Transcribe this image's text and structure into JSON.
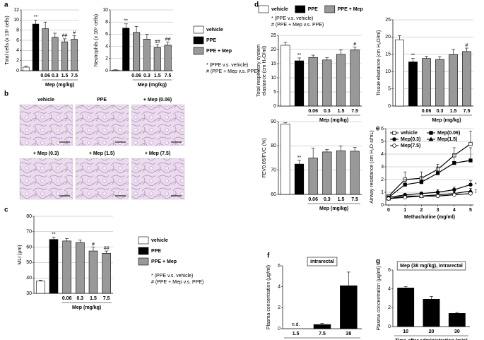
{
  "panel_labels": [
    "a",
    "b",
    "c",
    "d",
    "e",
    "f",
    "g"
  ],
  "panel_b": {
    "labels": [
      "vehicle",
      "PPE",
      "+ Mep (0.06)",
      "+ Mep (0.3)",
      "+ Mep (1.5)",
      "+ Mep (7.5)"
    ]
  },
  "chart_data": [
    {
      "type": "bar",
      "ylabel": [
        "Total cells (x 10⁵ cells)"
      ],
      "categories": [
        null,
        null,
        "0.06",
        "0.3",
        "1.5",
        "7.5"
      ],
      "xlabel": "Mep (mg/kg)",
      "values": [
        0.7,
        9.2,
        8.3,
        6.6,
        5.7,
        6.2
      ],
      "errors": [
        0.2,
        0.8,
        1.3,
        0.8,
        0.6,
        0.7
      ],
      "marks": [
        null,
        "**",
        null,
        null,
        "##",
        "#"
      ],
      "colors": [
        "#ffffff",
        "#000000",
        "#999999",
        "#999999",
        "#999999",
        "#999999"
      ],
      "ylim": [
        0,
        12
      ],
      "yticks": [
        0,
        2,
        4,
        6,
        8,
        10,
        12
      ],
      "grid": true
    },
    {
      "type": "bar",
      "ylabel": [
        "Neutrophils (x 10⁵ cells)"
      ],
      "categories": [
        null,
        null,
        "0.06",
        "0.3",
        "1.5",
        "7.5"
      ],
      "xlabel": "Mep (mg/kg)",
      "values": [
        0.1,
        7.0,
        6.3,
        5.2,
        3.8,
        4.2
      ],
      "errors": [
        0.05,
        0.7,
        1.0,
        0.8,
        0.5,
        0.5
      ],
      "marks": [
        null,
        "**",
        null,
        null,
        "##",
        "##"
      ],
      "colors": [
        "#ffffff",
        "#000000",
        "#999999",
        "#999999",
        "#999999",
        "#999999"
      ],
      "ylim": [
        0,
        10
      ],
      "yticks": [
        0,
        2,
        4,
        6,
        8,
        10
      ],
      "grid": true,
      "legend": {
        "items": [
          {
            "name": "vehicle",
            "color": "#ffffff"
          },
          {
            "name": "PPE",
            "color": "#000000"
          },
          {
            "name": "PPE + Mep",
            "color": "#999999"
          }
        ],
        "notes": [
          "* (PPE v.s. vehicle)",
          "# (PPE + Mep v.s. PPE)"
        ]
      }
    },
    {
      "type": "bar",
      "ylabel": [
        "MLI (μm)"
      ],
      "categories": [
        null,
        null,
        "0.06",
        "0.3",
        "1.5",
        "7.5"
      ],
      "xlabel": "Mep (mg/kg)",
      "values": [
        38,
        65,
        64,
        63,
        57.5,
        56
      ],
      "errors": [
        0.5,
        1.5,
        1.5,
        1.5,
        2.5,
        1.5
      ],
      "marks": [
        null,
        "**",
        null,
        null,
        "#",
        "##"
      ],
      "colors": [
        "#ffffff",
        "#000000",
        "#999999",
        "#999999",
        "#999999",
        "#999999"
      ],
      "ylim": [
        30,
        80
      ],
      "yticks": [
        30,
        40,
        50,
        60,
        70,
        80
      ],
      "grid": true,
      "legend": {
        "items": [
          {
            "name": "vehicle",
            "color": "#ffffff"
          },
          {
            "name": "PPE",
            "color": "#000000"
          },
          {
            "name": "PPE + Mep",
            "color": "#999999"
          }
        ],
        "notes": [
          "* (PPE v.s. vehicle)",
          "# (PPE + Mep v.s. PPE)"
        ]
      }
    },
    {
      "type": "bar",
      "ylabel": [
        "Total respiratory system",
        "elastance (cm H₂O/ml)"
      ],
      "categories": [
        null,
        null,
        "0.06",
        "0.3",
        "1.5",
        "7.5"
      ],
      "xlabel": "Mep (mg/kg)",
      "values": [
        21.5,
        16,
        17.2,
        16.3,
        18.3,
        19.8
      ],
      "errors": [
        1.0,
        1.0,
        0.8,
        0.8,
        1.5,
        1.0
      ],
      "marks": [
        null,
        "**",
        null,
        null,
        null,
        "#"
      ],
      "colors": [
        "#ffffff",
        "#000000",
        "#999999",
        "#999999",
        "#999999",
        "#999999"
      ],
      "ylim": [
        0,
        25
      ],
      "yticks": [
        0,
        5,
        10,
        15,
        20,
        25
      ],
      "grid": true,
      "legend": {
        "items": [
          {
            "name": "vehicle",
            "color": "#ffffff"
          },
          {
            "name": "PPE",
            "color": "#000000"
          },
          {
            "name": "PPE + Mep",
            "color": "#999999"
          }
        ],
        "notes": [
          "* (PPE v.s. vehicle)",
          "# (PPE + Mep v.s. PPE)"
        ]
      }
    },
    {
      "type": "bar",
      "ylabel": [
        "Tissue elastance (cm H₂O/ml)"
      ],
      "categories": [
        null,
        null,
        "0.06",
        "0.3",
        "1.5",
        "7.5"
      ],
      "xlabel": "Mep (mg/kg)",
      "values": [
        19.2,
        12.8,
        13.8,
        13.5,
        14.9,
        15.8
      ],
      "errors": [
        1.2,
        1.0,
        0.6,
        0.8,
        1.5,
        1.0
      ],
      "marks": [
        null,
        "**",
        null,
        null,
        null,
        "#"
      ],
      "colors": [
        "#ffffff",
        "#000000",
        "#999999",
        "#999999",
        "#999999",
        "#999999"
      ],
      "ylim": [
        0,
        25
      ],
      "yticks": [
        0,
        5,
        10,
        15,
        20,
        25
      ],
      "grid": true
    },
    {
      "type": "bar",
      "ylabel": [
        "FEV0.05/FVC (%)"
      ],
      "categories": [
        null,
        null,
        "0.06",
        "0.3",
        "1.5",
        "7.5"
      ],
      "xlabel": "Mep (mg/kg)",
      "values": [
        89,
        72.5,
        75,
        77.5,
        78,
        77.8
      ],
      "errors": [
        0.5,
        1.5,
        4,
        1,
        2,
        1.5
      ],
      "marks": [
        null,
        "**",
        null,
        null,
        null,
        null
      ],
      "colors": [
        "#ffffff",
        "#000000",
        "#999999",
        "#999999",
        "#999999",
        "#999999"
      ],
      "ylim": [
        60,
        90
      ],
      "yticks": [
        60,
        70,
        80,
        90
      ],
      "grid": true
    },
    {
      "type": "line",
      "ylabel": [
        "Airway resistance (cm H₂O·s/mL)"
      ],
      "xlabel": "Methacholine (mg/ml)",
      "x": [
        0,
        1,
        2,
        3,
        4,
        5
      ],
      "xlim": [
        0,
        5
      ],
      "xticks": [
        0,
        1,
        2,
        3,
        4,
        5
      ],
      "ylim": [
        0,
        6
      ],
      "yticks": [
        0,
        1,
        2,
        3,
        4,
        5,
        6
      ],
      "grid": true,
      "series": [
        {
          "name": "vehicle",
          "color": "#000000",
          "marker": "square",
          "filled": false,
          "values": [
            0.7,
            2.0,
            2.1,
            2.8,
            3.9,
            4.8
          ],
          "errors": [
            0.1,
            0.6,
            0.5,
            0.4,
            0.6,
            1.0
          ]
        },
        {
          "name": "Mep(0.06)",
          "color": "#000000",
          "marker": "square",
          "filled": true,
          "values": [
            0.6,
            1.6,
            1.8,
            2.5,
            3.3,
            3.5
          ],
          "errors": [
            0.1,
            0.4,
            0.4,
            0.5,
            0.7,
            1.0
          ]
        },
        {
          "name": "Mep(0.3)",
          "color": "#000000",
          "marker": "circle",
          "filled": true,
          "values": [
            0.6,
            0.8,
            0.9,
            1.0,
            1.2,
            1.6
          ],
          "errors": [
            0.1,
            0.1,
            0.1,
            0.2,
            0.2,
            0.3
          ]
        },
        {
          "name": "Mep(1.5)",
          "color": "#000000",
          "marker": "triangle",
          "filled": true,
          "values": [
            0.5,
            0.7,
            0.7,
            0.8,
            0.9,
            1.1
          ],
          "errors": [
            0.1,
            0.1,
            0.1,
            0.1,
            0.1,
            0.2
          ]
        },
        {
          "name": "Mep(7.5)",
          "color": "#000000",
          "marker": "circle",
          "filled": false,
          "values": [
            0.5,
            0.6,
            0.7,
            0.7,
            0.8,
            0.9
          ],
          "errors": [
            0.1,
            0.1,
            0.1,
            0.1,
            0.1,
            0.1
          ]
        }
      ],
      "end_marks": [
        null,
        null,
        "*",
        "*",
        "*"
      ]
    },
    {
      "type": "bar",
      "title": "intrarectal",
      "ylabel": [
        "Plasma concentration (μg/ml)"
      ],
      "categories": [
        "1.5",
        "7.5",
        "38"
      ],
      "xlabel": "Mep (mg/kg)",
      "values": [
        null,
        0.4,
        4.1
      ],
      "value_labels": [
        "n.d.",
        null,
        null
      ],
      "errors": [
        null,
        0.1,
        1.3
      ],
      "colors": [
        "#000000",
        "#000000",
        "#000000"
      ],
      "ylim": [
        0,
        6
      ],
      "yticks": [
        0,
        2,
        4,
        6
      ],
      "grid": false
    },
    {
      "type": "bar",
      "title": "Mep (38 mg/kg), intrarectal",
      "ylabel": [
        "Plasma concentration (μg/ml)"
      ],
      "categories": [
        "10",
        "20",
        "30"
      ],
      "xlabel": "Time after administration (min)",
      "values": [
        4.1,
        2.9,
        1.4
      ],
      "errors": [
        0.15,
        0.3,
        0.1
      ],
      "colors": [
        "#000000",
        "#000000",
        "#000000"
      ],
      "ylim": [
        0,
        6
      ],
      "yticks": [
        0,
        2,
        4,
        6
      ],
      "grid": false
    }
  ]
}
